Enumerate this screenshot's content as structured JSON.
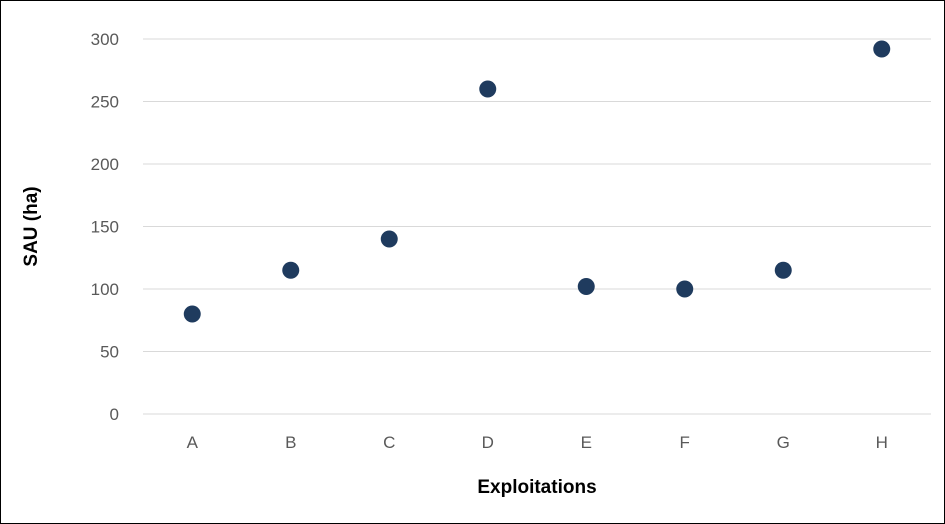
{
  "chart_data": {
    "type": "scatter",
    "title": "",
    "xlabel": "Exploitations",
    "ylabel": "SAU (ha)",
    "categories": [
      "A",
      "B",
      "C",
      "D",
      "E",
      "F",
      "G",
      "H"
    ],
    "values": [
      80,
      115,
      140,
      260,
      102,
      100,
      115,
      292
    ],
    "ylim": [
      0,
      300
    ],
    "yticks": [
      "0",
      "50",
      "100",
      "150",
      "200",
      "250",
      "300"
    ],
    "grid": true,
    "legend": "none",
    "colors": {
      "marker": "#1f3b5e",
      "gridline": "#d9d9d9",
      "tick_text": "#595959",
      "axis_title": "#000000"
    }
  }
}
